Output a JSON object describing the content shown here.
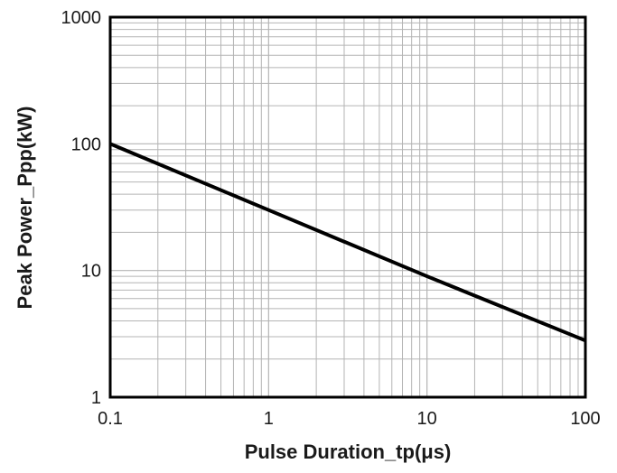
{
  "chart_data": {
    "type": "line",
    "title": "",
    "xlabel": "Pulse Duration_tp(μs)",
    "ylabel": "Peak  Power_Ppp(kW)",
    "x_scale": "log",
    "y_scale": "log",
    "xlim": [
      0.1,
      100
    ],
    "ylim": [
      1,
      1000
    ],
    "x_ticks": [
      {
        "value": 0.1,
        "label": "0.1"
      },
      {
        "value": 1,
        "label": "1"
      },
      {
        "value": 10,
        "label": "10"
      },
      {
        "value": 100,
        "label": "100"
      }
    ],
    "y_ticks": [
      {
        "value": 1,
        "label": "1"
      },
      {
        "value": 10,
        "label": "10"
      },
      {
        "value": 100,
        "label": "100"
      },
      {
        "value": 1000,
        "label": "1000"
      }
    ],
    "grid": true,
    "series": [
      {
        "x": [
          0.1,
          1,
          10,
          100
        ],
        "y": [
          100,
          30,
          9,
          2.8
        ]
      }
    ],
    "colors": {
      "line": "#000000",
      "grid": "#b4b4b4",
      "frame": "#000000",
      "text": "#1a1a1a"
    }
  }
}
